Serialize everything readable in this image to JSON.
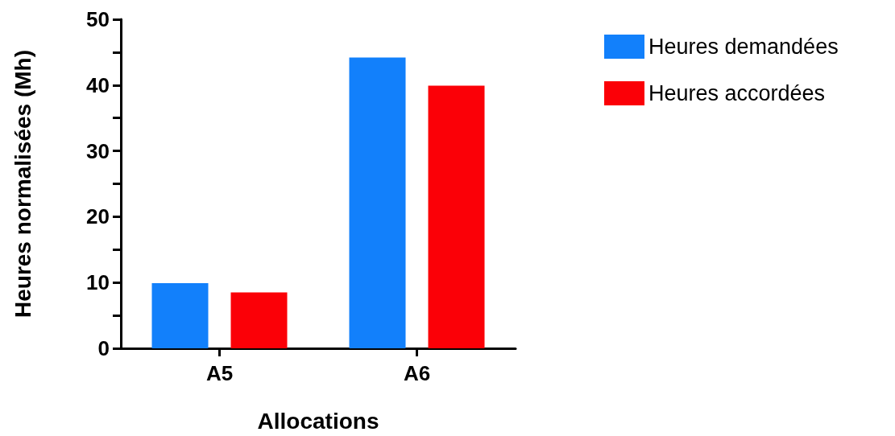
{
  "chart_data": {
    "type": "bar",
    "xlabel": "Allocations",
    "ylabel": "Heures normalisées (Mh)",
    "categories": [
      "A5",
      "A6"
    ],
    "series": [
      {
        "name": "Heures demandées",
        "color": "#1280fb",
        "values": [
          9.9,
          44.2
        ]
      },
      {
        "name": "Heures accordées",
        "color": "#fb0007",
        "values": [
          8.5,
          39.9
        ]
      }
    ],
    "ylim": [
      0,
      50
    ],
    "yticks": [
      0,
      {
        "value": 5,
        "label": null
      },
      10,
      {
        "value": 15,
        "label": null
      },
      20,
      {
        "value": 25,
        "label": null
      },
      30,
      {
        "value": 35,
        "label": null
      },
      40,
      {
        "value": 45,
        "label": null
      },
      50
    ],
    "grid": false,
    "legend": "top right"
  }
}
